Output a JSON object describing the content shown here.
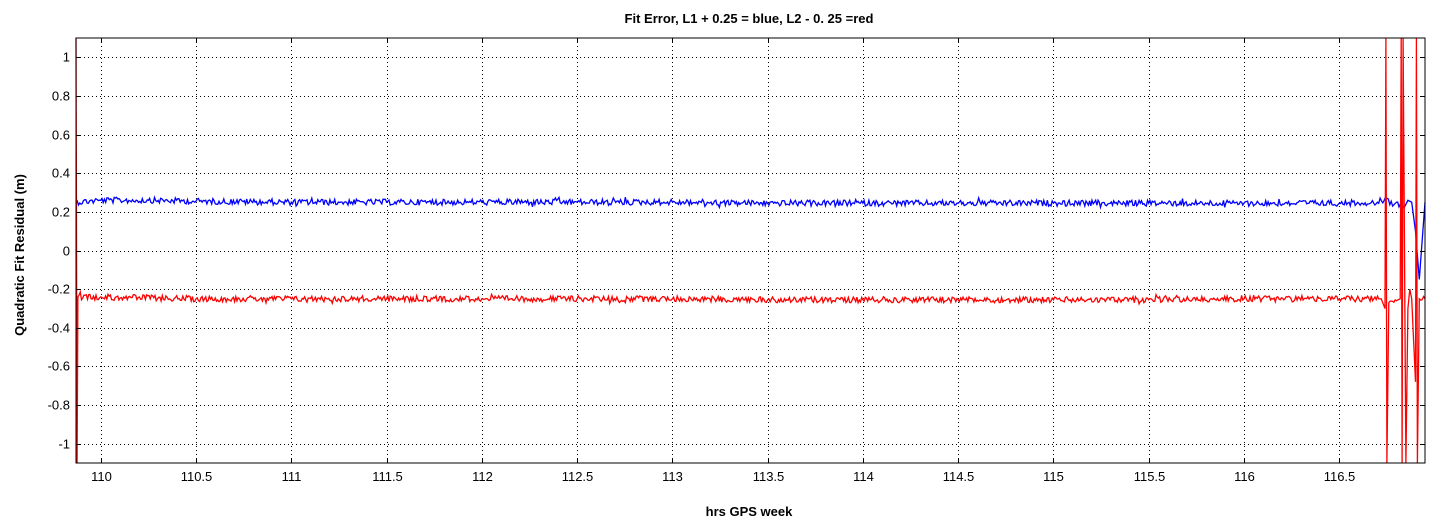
{
  "chart_data": {
    "type": "line",
    "title": "Fit Error, L1 + 0.25 = blue,    L2 - 0. 25 =red",
    "xlabel": "hrs GPS week",
    "ylabel": "Quadratic Fit Residual (m)",
    "xlim": [
      109.87,
      116.95
    ],
    "ylim": [
      -1.1,
      1.1
    ],
    "grid": true,
    "x_ticks": [
      110,
      110.5,
      111,
      111.5,
      112,
      112.5,
      113,
      113.5,
      114,
      114.5,
      115,
      115.5,
      116,
      116.5
    ],
    "x_tick_labels": [
      "110",
      "110.5",
      "111",
      "111.5",
      "112",
      "112.5",
      "113",
      "113.5",
      "114",
      "114.5",
      "115",
      "115.5",
      "116",
      "116.5"
    ],
    "y_ticks": [
      -1,
      -0.8,
      -0.6,
      -0.4,
      -0.2,
      0,
      0.2,
      0.4,
      0.6,
      0.8,
      1
    ],
    "y_tick_labels": [
      "-1",
      "-0.8",
      "-0.6",
      "-0.4",
      "-0.2",
      "0",
      "0.2",
      "0.4",
      "0.6",
      "0.8",
      "1"
    ],
    "series": [
      {
        "color": "#0000ff",
        "x": [
          109.87,
          110.0,
          110.25,
          110.5,
          111.0,
          111.5,
          112.0,
          112.5,
          113.0,
          113.5,
          114.0,
          114.5,
          115.0,
          115.5,
          116.0,
          116.5,
          116.7,
          116.75,
          116.78,
          116.8,
          116.84,
          116.86,
          116.88,
          116.9,
          116.92,
          116.95
        ],
        "values": [
          0.25,
          0.26,
          0.26,
          0.255,
          0.25,
          0.25,
          0.25,
          0.25,
          0.25,
          0.245,
          0.245,
          0.245,
          0.245,
          0.245,
          0.245,
          0.245,
          0.25,
          0.27,
          0.23,
          0.25,
          0.22,
          0.26,
          0.25,
          0.1,
          -0.15,
          0.25
        ]
      },
      {
        "color": "#ff0000",
        "x": [
          109.87,
          109.876,
          109.88,
          110.0,
          110.5,
          111.0,
          111.5,
          112.0,
          112.5,
          113.0,
          113.5,
          114.0,
          114.5,
          115.0,
          115.5,
          116.0,
          116.5,
          116.72,
          116.74,
          116.745,
          116.75,
          116.76,
          116.8,
          116.82,
          116.825,
          116.83,
          116.835,
          116.85,
          116.86,
          116.87,
          116.88,
          116.9,
          116.905,
          116.91,
          116.92,
          116.95
        ],
        "values": [
          1.1,
          -1.1,
          -0.24,
          -0.24,
          -0.25,
          -0.25,
          -0.25,
          -0.25,
          -0.25,
          -0.25,
          -0.255,
          -0.255,
          -0.255,
          -0.255,
          -0.255,
          -0.25,
          -0.25,
          -0.25,
          -0.3,
          1.1,
          -1.1,
          -0.27,
          -0.26,
          -0.25,
          1.1,
          -1.1,
          1.1,
          -1.1,
          -0.3,
          -0.2,
          -0.25,
          -0.68,
          1.1,
          -1.1,
          -0.25,
          -0.25
        ]
      }
    ]
  }
}
